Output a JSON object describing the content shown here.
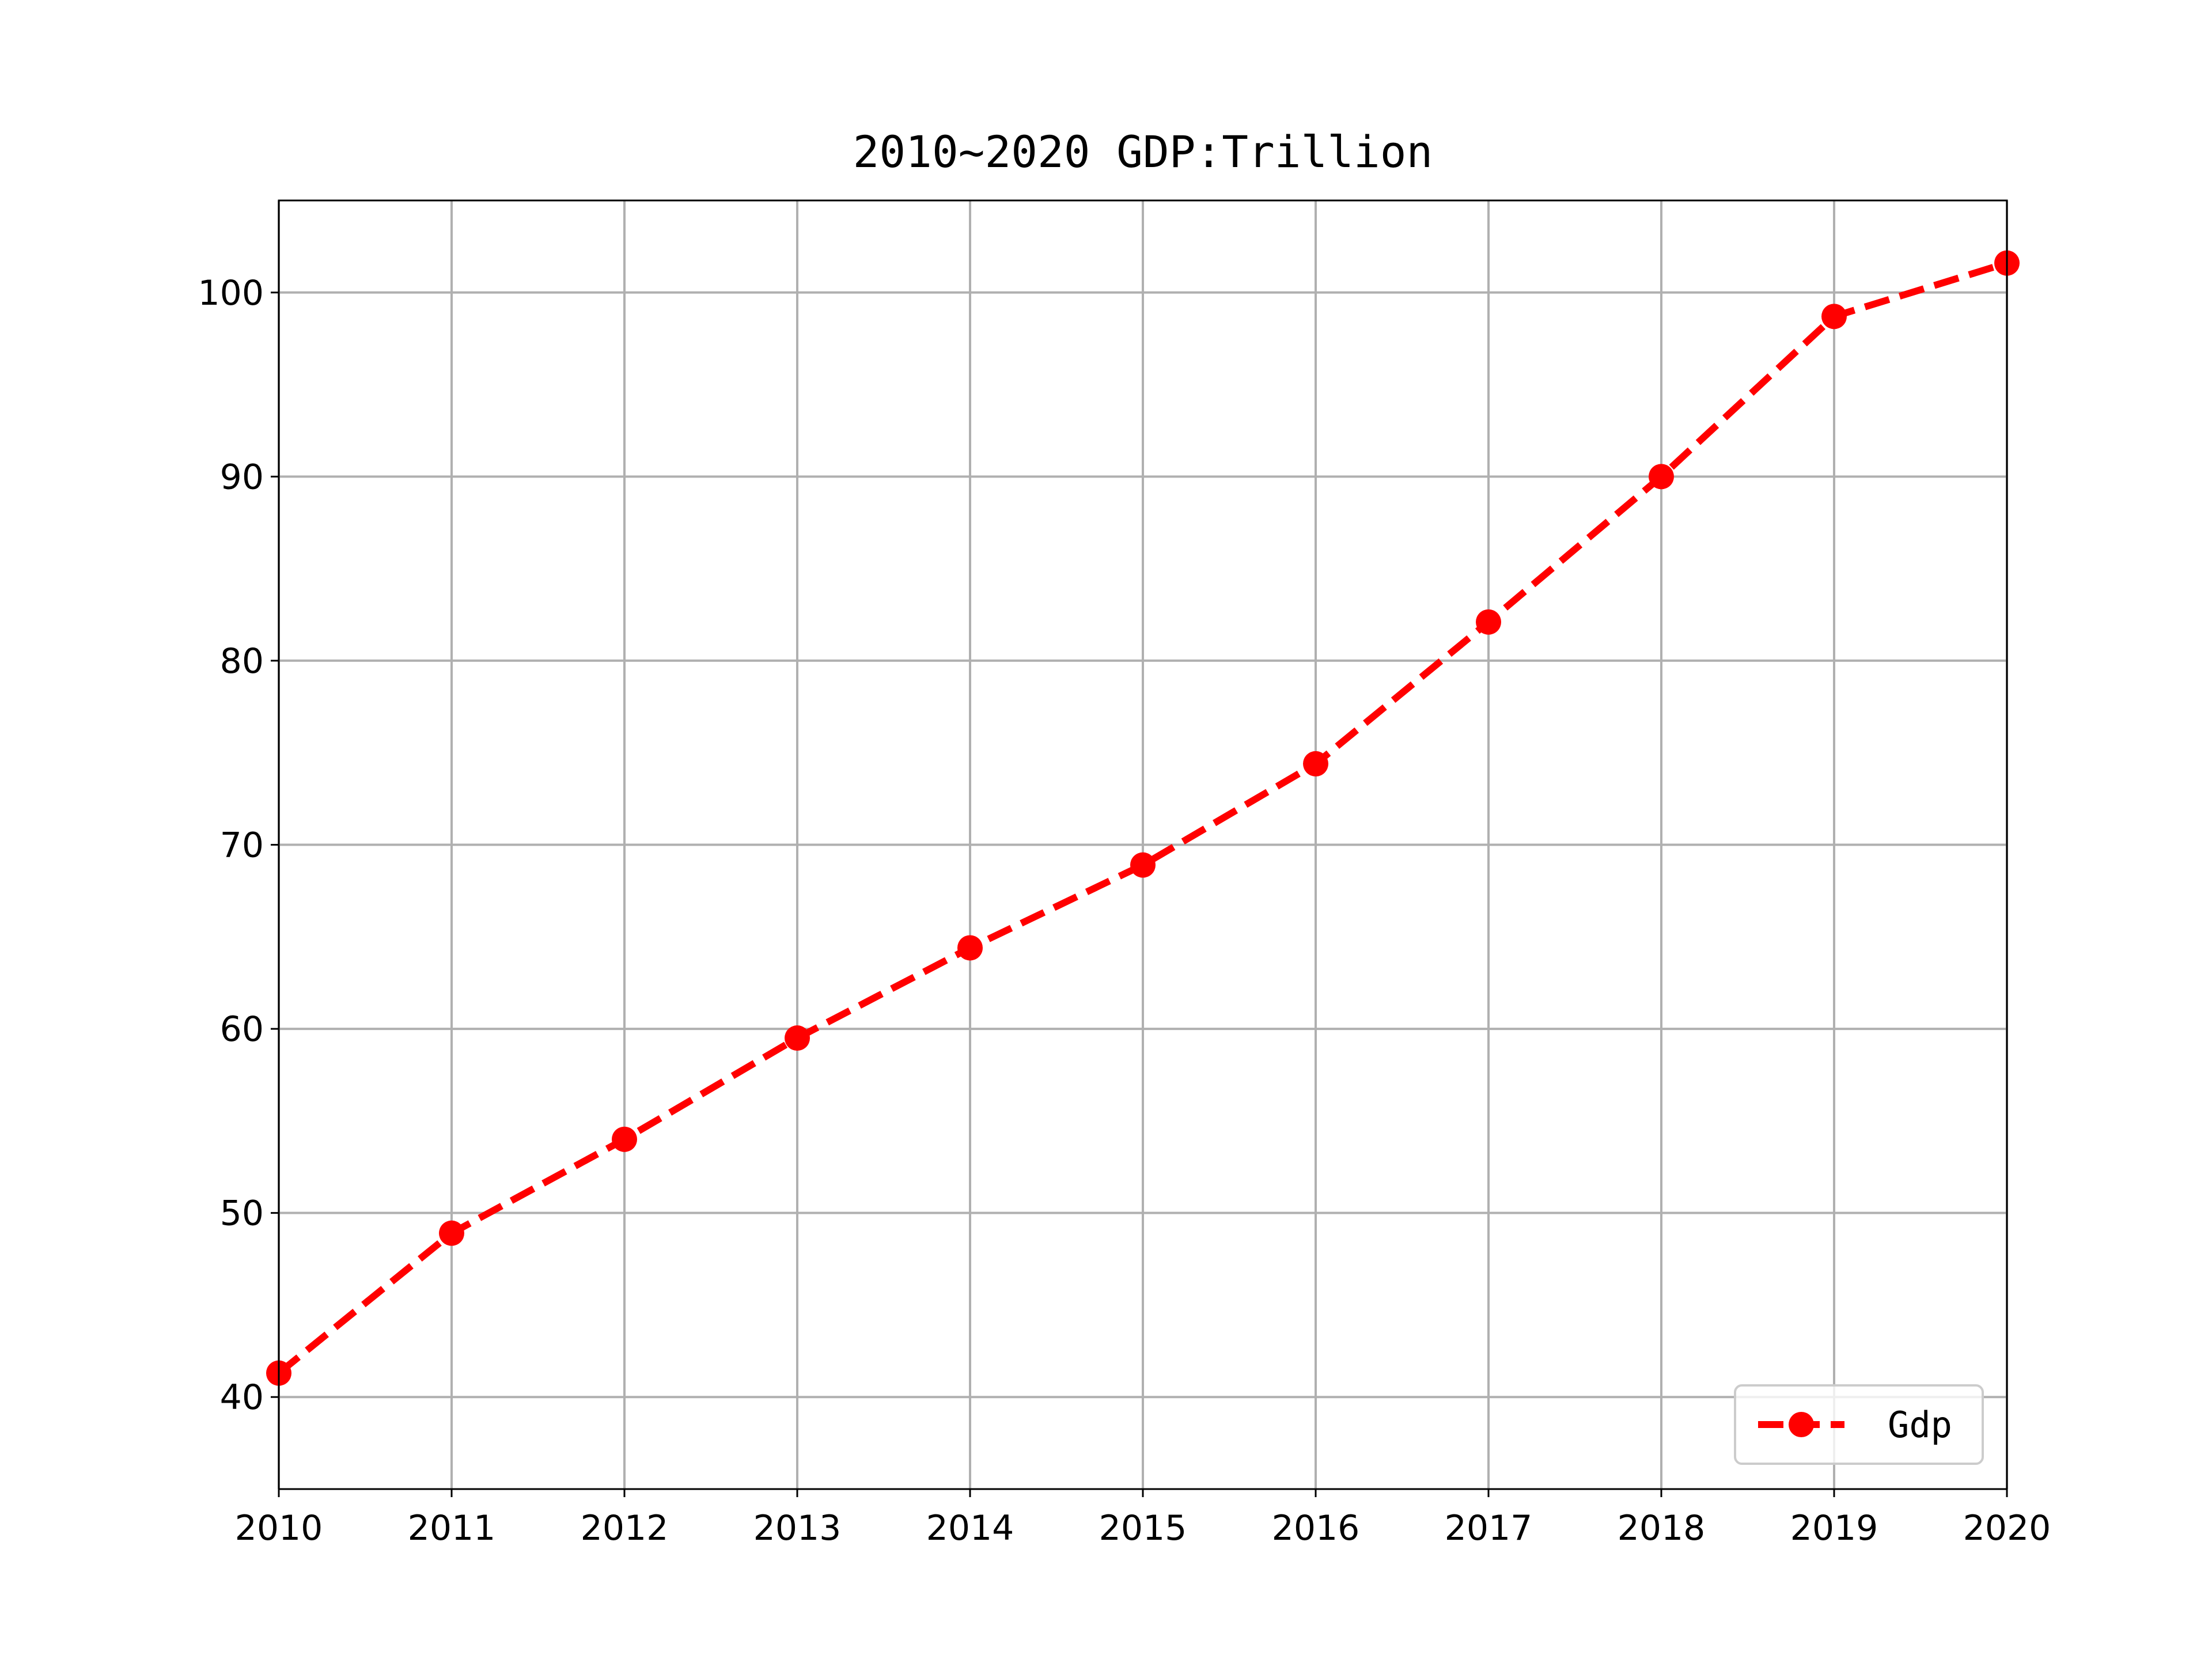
{
  "chart_data": {
    "type": "line",
    "title": "2010~2020 GDP:Trillion",
    "xlabel": "",
    "ylabel": "",
    "x": [
      2010,
      2011,
      2012,
      2013,
      2014,
      2015,
      2016,
      2017,
      2018,
      2019,
      2020
    ],
    "xlim": [
      2010,
      2020
    ],
    "ylim": [
      35,
      105
    ],
    "xticks": [
      "2010",
      "2011",
      "2012",
      "2013",
      "2014",
      "2015",
      "2016",
      "2017",
      "2018",
      "2019",
      "2020"
    ],
    "yticks": [
      40,
      50,
      60,
      70,
      80,
      90,
      100
    ],
    "ytick_labels": [
      "40",
      "50",
      "60",
      "70",
      "80",
      "90",
      "100"
    ],
    "grid": true,
    "legend_position": "bottom-right",
    "series": [
      {
        "name": "Gdp",
        "color": "#ff0000",
        "line_style": "dashed",
        "marker": "circle",
        "values": [
          41.3,
          48.9,
          54.0,
          59.5,
          64.4,
          68.9,
          74.4,
          82.1,
          90.0,
          98.7,
          101.6
        ]
      }
    ]
  }
}
